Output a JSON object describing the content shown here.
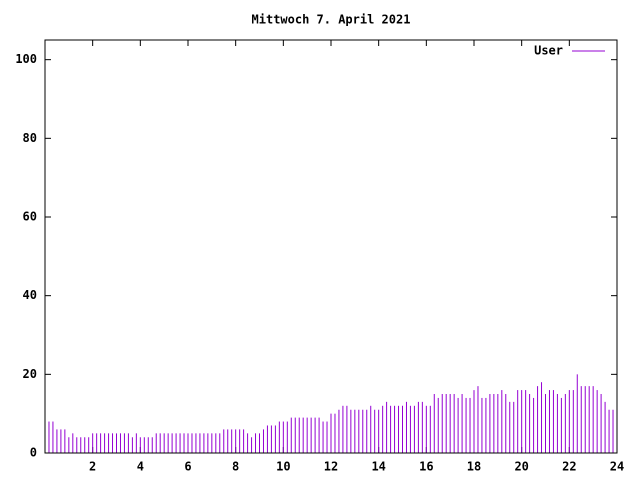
{
  "chart_data": {
    "type": "impulse",
    "title": "Mittwoch 7. April 2021",
    "x": [
      0,
      0.167,
      0.333,
      0.5,
      0.667,
      0.833,
      1,
      1.167,
      1.333,
      1.5,
      1.667,
      1.833,
      2,
      2.167,
      2.333,
      2.5,
      2.667,
      2.833,
      3,
      3.167,
      3.333,
      3.5,
      3.667,
      3.833,
      4,
      4.167,
      4.333,
      4.5,
      4.667,
      4.833,
      5,
      5.167,
      5.333,
      5.5,
      5.667,
      5.833,
      6,
      6.167,
      6.333,
      6.5,
      6.667,
      6.833,
      7,
      7.167,
      7.333,
      7.5,
      7.667,
      7.833,
      8,
      8.167,
      8.333,
      8.5,
      8.667,
      8.833,
      9,
      9.167,
      9.333,
      9.5,
      9.667,
      9.833,
      10,
      10.167,
      10.333,
      10.5,
      10.667,
      10.833,
      11,
      11.167,
      11.333,
      11.5,
      11.667,
      11.833,
      12,
      12.167,
      12.333,
      12.5,
      12.667,
      12.833,
      13,
      13.167,
      13.333,
      13.5,
      13.667,
      13.833,
      14,
      14.167,
      14.333,
      14.5,
      14.667,
      14.833,
      15,
      15.167,
      15.333,
      15.5,
      15.667,
      15.833,
      16,
      16.167,
      16.333,
      16.5,
      16.667,
      16.833,
      17,
      17.167,
      17.333,
      17.5,
      17.667,
      17.833,
      18,
      18.167,
      18.333,
      18.5,
      18.667,
      18.833,
      19,
      19.167,
      19.333,
      19.5,
      19.667,
      19.833,
      20,
      20.167,
      20.333,
      20.5,
      20.667,
      20.833,
      21,
      21.167,
      21.333,
      21.5,
      21.667,
      21.833,
      22,
      22.167,
      22.333,
      22.5,
      22.667,
      22.833,
      23,
      23.167,
      23.333,
      23.5,
      23.667,
      23.833
    ],
    "series": [
      {
        "name": "User",
        "color": "#9400d3",
        "values": [
          8,
          8,
          8,
          6,
          6,
          6,
          4,
          5,
          4,
          4,
          4,
          4,
          5,
          5,
          5,
          5,
          5,
          5,
          5,
          5,
          5,
          5,
          4,
          5,
          4,
          4,
          4,
          4,
          5,
          5,
          5,
          5,
          5,
          5,
          5,
          5,
          5,
          5,
          5,
          5,
          5,
          5,
          5,
          5,
          5,
          6,
          6,
          6,
          6,
          6,
          6,
          5,
          4,
          5,
          5,
          6,
          7,
          7,
          7,
          8,
          8,
          8,
          9,
          9,
          9,
          9,
          9,
          9,
          9,
          9,
          8,
          8,
          10,
          10,
          11,
          12,
          12,
          11,
          11,
          11,
          11,
          11,
          12,
          11,
          11,
          12,
          13,
          12,
          12,
          12,
          12,
          13,
          12,
          12,
          13,
          13,
          12,
          12,
          15,
          14,
          15,
          15,
          15,
          15,
          14,
          15,
          14,
          14,
          16,
          17,
          14,
          14,
          15,
          15,
          15,
          16,
          15,
          13,
          13,
          16,
          16,
          16,
          15,
          14,
          17,
          18,
          15,
          16,
          16,
          15,
          14,
          15,
          16,
          16,
          20,
          17,
          17,
          17,
          17,
          16,
          15,
          13,
          11,
          11
        ]
      }
    ],
    "xlim": [
      0,
      24
    ],
    "xticks": [
      2,
      4,
      6,
      8,
      10,
      12,
      14,
      16,
      18,
      20,
      22,
      24
    ],
    "ylim": [
      0,
      105
    ],
    "yticks": [
      0,
      20,
      40,
      60,
      80,
      100
    ],
    "legend": "top-right"
  }
}
